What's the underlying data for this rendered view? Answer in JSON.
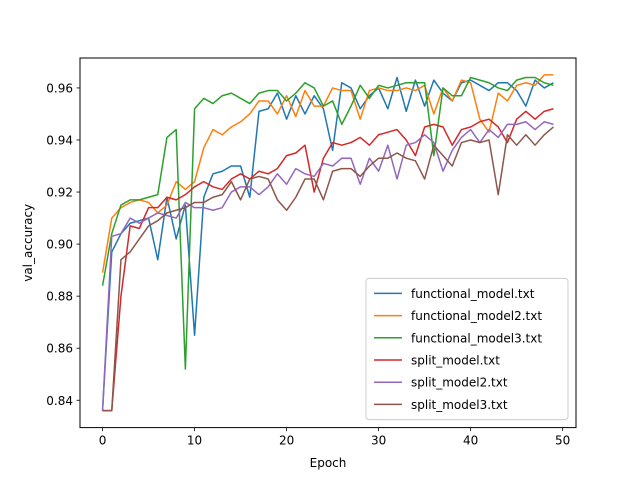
{
  "chart_data": {
    "type": "line",
    "title": "",
    "xlabel": "Epoch",
    "ylabel": "val_accuracy",
    "xlim": [
      -2.45,
      51.45
    ],
    "ylim": [
      0.8295,
      0.9715
    ],
    "xticks": [
      0,
      10,
      20,
      30,
      40,
      50
    ],
    "yticks": [
      0.84,
      0.86,
      0.88,
      0.9,
      0.92,
      0.94,
      0.96
    ],
    "grid": false,
    "legend_position": "lower-right",
    "x": [
      0,
      1,
      2,
      3,
      4,
      5,
      6,
      7,
      8,
      9,
      10,
      11,
      12,
      13,
      14,
      15,
      16,
      17,
      18,
      19,
      20,
      21,
      22,
      23,
      24,
      25,
      26,
      27,
      28,
      29,
      30,
      31,
      32,
      33,
      34,
      35,
      36,
      37,
      38,
      39,
      40,
      41,
      42,
      43,
      44,
      45,
      46,
      47,
      48,
      49
    ],
    "series": [
      {
        "name": "functional_model.txt",
        "color": "#1f77b4",
        "values": [
          0.836,
          0.897,
          0.904,
          0.908,
          0.909,
          0.91,
          0.894,
          0.918,
          0.902,
          0.915,
          0.865,
          0.918,
          0.927,
          0.928,
          0.93,
          0.93,
          0.918,
          0.951,
          0.952,
          0.958,
          0.948,
          0.957,
          0.95,
          0.957,
          0.952,
          0.936,
          0.962,
          0.96,
          0.952,
          0.957,
          0.96,
          0.952,
          0.964,
          0.951,
          0.963,
          0.953,
          0.963,
          0.958,
          0.955,
          0.962,
          0.963,
          0.961,
          0.959,
          0.962,
          0.962,
          0.959,
          0.953,
          0.963,
          0.96,
          0.962
        ]
      },
      {
        "name": "functional_model2.txt",
        "color": "#ff7f0e",
        "values": [
          0.889,
          0.91,
          0.914,
          0.916,
          0.917,
          0.916,
          0.912,
          0.915,
          0.924,
          0.921,
          0.924,
          0.937,
          0.944,
          0.942,
          0.945,
          0.947,
          0.95,
          0.955,
          0.955,
          0.95,
          0.957,
          0.949,
          0.959,
          0.953,
          0.953,
          0.96,
          0.959,
          0.959,
          0.948,
          0.959,
          0.96,
          0.959,
          0.959,
          0.96,
          0.959,
          0.961,
          0.95,
          0.96,
          0.955,
          0.963,
          0.962,
          0.948,
          0.943,
          0.958,
          0.955,
          0.961,
          0.962,
          0.961,
          0.965,
          0.965
        ]
      },
      {
        "name": "functional_model3.txt",
        "color": "#2ca02c",
        "values": [
          0.884,
          0.904,
          0.915,
          0.917,
          0.917,
          0.918,
          0.919,
          0.941,
          0.944,
          0.852,
          0.952,
          0.956,
          0.954,
          0.957,
          0.958,
          0.956,
          0.954,
          0.958,
          0.959,
          0.959,
          0.955,
          0.958,
          0.962,
          0.96,
          0.953,
          0.955,
          0.946,
          0.953,
          0.961,
          0.956,
          0.961,
          0.96,
          0.961,
          0.962,
          0.962,
          0.962,
          0.934,
          0.96,
          0.957,
          0.957,
          0.964,
          0.963,
          0.962,
          0.96,
          0.959,
          0.963,
          0.964,
          0.964,
          0.962,
          0.961
        ]
      },
      {
        "name": "split_model.txt",
        "color": "#d62728",
        "values": [
          0.836,
          0.836,
          0.88,
          0.907,
          0.906,
          0.914,
          0.914,
          0.918,
          0.917,
          0.919,
          0.922,
          0.924,
          0.922,
          0.921,
          0.925,
          0.927,
          0.925,
          0.928,
          0.927,
          0.929,
          0.934,
          0.935,
          0.938,
          0.92,
          0.933,
          0.939,
          0.938,
          0.939,
          0.941,
          0.938,
          0.942,
          0.943,
          0.944,
          0.94,
          0.934,
          0.945,
          0.946,
          0.945,
          0.938,
          0.944,
          0.945,
          0.947,
          0.948,
          0.945,
          0.939,
          0.948,
          0.951,
          0.948,
          0.951,
          0.952
        ]
      },
      {
        "name": "split_model2.txt",
        "color": "#9467bd",
        "values": [
          0.836,
          0.903,
          0.904,
          0.91,
          0.908,
          0.91,
          0.912,
          0.911,
          0.91,
          0.916,
          0.914,
          0.914,
          0.913,
          0.914,
          0.92,
          0.922,
          0.922,
          0.919,
          0.922,
          0.927,
          0.923,
          0.929,
          0.927,
          0.926,
          0.931,
          0.93,
          0.933,
          0.933,
          0.923,
          0.933,
          0.928,
          0.938,
          0.925,
          0.938,
          0.939,
          0.942,
          0.939,
          0.928,
          0.936,
          0.941,
          0.944,
          0.939,
          0.944,
          0.941,
          0.946,
          0.946,
          0.947,
          0.944,
          0.947,
          0.946
        ]
      },
      {
        "name": "split_model3.txt",
        "color": "#8c564b",
        "values": [
          0.836,
          0.836,
          0.894,
          0.897,
          0.902,
          0.907,
          0.909,
          0.912,
          0.913,
          0.914,
          0.916,
          0.916,
          0.918,
          0.919,
          0.924,
          0.917,
          0.925,
          0.926,
          0.925,
          0.917,
          0.913,
          0.918,
          0.925,
          0.925,
          0.917,
          0.928,
          0.929,
          0.929,
          0.926,
          0.93,
          0.933,
          0.933,
          0.935,
          0.933,
          0.932,
          0.925,
          0.938,
          0.934,
          0.93,
          0.939,
          0.94,
          0.939,
          0.94,
          0.919,
          0.942,
          0.938,
          0.942,
          0.938,
          0.942,
          0.945
        ]
      }
    ]
  }
}
